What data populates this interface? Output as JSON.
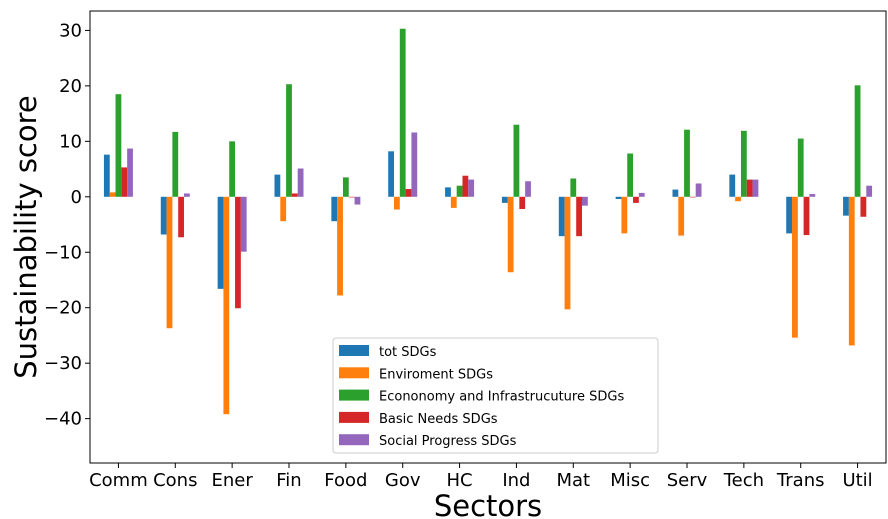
{
  "chart_data": {
    "type": "bar",
    "xlabel": "Sectors",
    "ylabel": "Sustainability score",
    "ylim": [
      -48,
      33.5
    ],
    "yticks": [
      -40,
      -30,
      -20,
      -10,
      0,
      10,
      20,
      30
    ],
    "ytick_labels": [
      "−40",
      "−30",
      "−20",
      "−10",
      "0",
      "10",
      "20",
      "30"
    ],
    "grid": false,
    "legend_position": "lower-center",
    "categories": [
      "Comm",
      "Cons",
      "Ener",
      "Fin",
      "Food",
      "Gov",
      "HC",
      "Ind",
      "Mat",
      "Misc",
      "Serv",
      "Tech",
      "Trans",
      "Util"
    ],
    "series": [
      {
        "name": "tot SDGs",
        "color": "#1f77b4",
        "values": [
          7.6,
          -6.8,
          -16.6,
          4.0,
          -4.4,
          8.2,
          1.7,
          -1.1,
          -7.1,
          -0.4,
          1.3,
          4.0,
          -6.6,
          -3.4
        ]
      },
      {
        "name": "Enviroment SDGs",
        "color": "#ff7f0e",
        "values": [
          0.8,
          -23.7,
          -39.2,
          -4.4,
          -17.8,
          -2.3,
          -2.0,
          -13.6,
          -20.3,
          -6.6,
          -7.0,
          -0.8,
          -25.4,
          -26.8
        ]
      },
      {
        "name": "Econonomy and Infrastrucuture SDGs",
        "color": "#2ca02c",
        "values": [
          18.5,
          11.7,
          10.0,
          20.3,
          3.5,
          30.3,
          2.0,
          13.0,
          3.3,
          7.8,
          12.1,
          11.9,
          10.5,
          20.1
        ]
      },
      {
        "name": "Basic Needs SDGs",
        "color": "#d62728",
        "values": [
          5.3,
          -7.3,
          -20.1,
          0.6,
          0.0,
          1.4,
          3.8,
          -2.2,
          -7.1,
          -1.1,
          0.0,
          3.1,
          -6.9,
          -3.6
        ]
      },
      {
        "name": "Social Progress SDGs",
        "color": "#9467bd",
        "values": [
          8.7,
          0.6,
          -9.9,
          5.1,
          -1.4,
          11.6,
          3.1,
          2.8,
          -1.6,
          0.7,
          2.4,
          3.1,
          0.5,
          2.0
        ]
      }
    ]
  }
}
